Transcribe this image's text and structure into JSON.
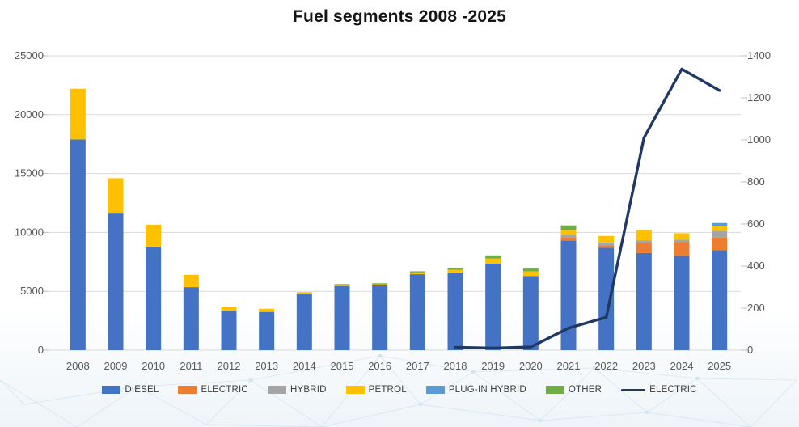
{
  "title": "Fuel segments 2008 -2025",
  "colors": {
    "diesel": "#4472C4",
    "electric_bar": "#ED7D31",
    "hybrid": "#A5A5A5",
    "petrol": "#FFC000",
    "plugin_hybrid": "#5B9BD5",
    "other": "#70AD47",
    "electric_line": "#1F3864",
    "gridline": "#D9D9D9",
    "axis_text": "#595959",
    "mesh": "#c7dfeb"
  },
  "chart_data": {
    "type": "bar",
    "subtype": "stacked-combo-with-line",
    "title": "Fuel segments 2008 -2025",
    "categories": [
      "2008",
      "2009",
      "2010",
      "2011",
      "2012",
      "2013",
      "2014",
      "2015",
      "2016",
      "2017",
      "2018",
      "2019",
      "2020",
      "2021",
      "2022",
      "2023",
      "2024",
      "2025"
    ],
    "series": [
      {
        "name": "DIESEL",
        "type": "bar",
        "axis": "left",
        "color": "#4472C4",
        "values": [
          17900,
          11600,
          8800,
          5350,
          3350,
          3250,
          4750,
          5450,
          5500,
          6450,
          6600,
          7350,
          6300,
          9300,
          8700,
          8250,
          8000,
          8500
        ]
      },
      {
        "name": "ELECTRIC",
        "type": "bar",
        "axis": "left",
        "color": "#ED7D31",
        "values": [
          0,
          0,
          0,
          0,
          0,
          0,
          0,
          0,
          0,
          0,
          0,
          0,
          0,
          250,
          200,
          850,
          1200,
          1050
        ]
      },
      {
        "name": "HYBRID",
        "type": "bar",
        "axis": "left",
        "color": "#A5A5A5",
        "values": [
          0,
          0,
          0,
          0,
          0,
          0,
          0,
          0,
          0,
          0,
          0,
          0,
          0,
          250,
          250,
          230,
          180,
          600
        ]
      },
      {
        "name": "PETROL",
        "type": "bar",
        "axis": "left",
        "color": "#FFC000",
        "values": [
          4300,
          3000,
          1850,
          1050,
          350,
          270,
          180,
          100,
          80,
          150,
          230,
          430,
          400,
          400,
          550,
          870,
          550,
          400
        ]
      },
      {
        "name": "PLUG-IN HYBRID",
        "type": "bar",
        "axis": "left",
        "color": "#5B9BD5",
        "values": [
          0,
          0,
          0,
          0,
          0,
          0,
          0,
          0,
          0,
          0,
          0,
          0,
          0,
          0,
          0,
          0,
          0,
          250
        ]
      },
      {
        "name": "OTHER",
        "type": "bar",
        "axis": "left",
        "color": "#70AD47",
        "values": [
          0,
          0,
          0,
          0,
          0,
          0,
          0,
          60,
          100,
          100,
          150,
          270,
          230,
          400,
          0,
          0,
          0,
          0
        ]
      },
      {
        "name": "ELECTRIC",
        "type": "line",
        "axis": "right",
        "color": "#1F3864",
        "values": [
          null,
          null,
          null,
          null,
          null,
          null,
          null,
          null,
          null,
          null,
          14,
          10,
          15,
          105,
          157,
          1010,
          1337,
          1235
        ]
      }
    ],
    "left_axis": {
      "min": 0,
      "max": 25000,
      "step": 5000,
      "tick_labels": [
        "0",
        "5000",
        "10000",
        "15000",
        "20000",
        "25000"
      ]
    },
    "right_axis": {
      "min": 0,
      "max": 1400,
      "step": 200,
      "tick_labels": [
        "0",
        "200",
        "400",
        "600",
        "800",
        "1000",
        "1200",
        "1400"
      ]
    },
    "grid": true,
    "legend_position": "bottom"
  }
}
